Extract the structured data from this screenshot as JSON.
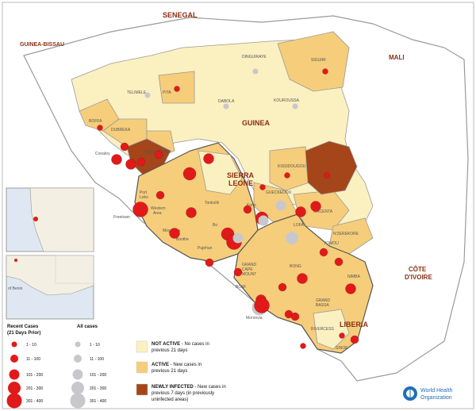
{
  "countries": {
    "senegal": "SENEGAL",
    "guinea_bissau": "GUINEA-BISSAU",
    "mali": "MALI",
    "guinea": "GUINEA",
    "sierra_leone": "SIERRA\nLEONE",
    "liberia": "LIBERIA",
    "cote_divoire": "CÔTE\nD'IVOIRE"
  },
  "districts": [
    {
      "id": "siguiri",
      "label": "SIGUIRI",
      "status": "active"
    },
    {
      "id": "dinguiraye",
      "label": "DINGUIRAYE",
      "status": "not"
    },
    {
      "id": "telimele",
      "label": "TELIMELE",
      "status": "not"
    },
    {
      "id": "pita",
      "label": "PITA",
      "status": "active"
    },
    {
      "id": "dabola",
      "label": "DABOLA",
      "status": "not"
    },
    {
      "id": "kouroussa",
      "label": "KOUROUSSA",
      "status": "not"
    },
    {
      "id": "boffa",
      "label": "BOFFA",
      "status": "active"
    },
    {
      "id": "dubreka",
      "label": "DUBREKA",
      "status": "active"
    },
    {
      "id": "forecariah",
      "label": "FORECARIAH",
      "status": "new"
    },
    {
      "id": "kissidougou",
      "label": "KISSIDOUGOU",
      "status": "active"
    },
    {
      "id": "gueckedou",
      "label": "GUECKEDOU",
      "status": "active"
    },
    {
      "id": "kerouane",
      "label": "",
      "status": "new"
    },
    {
      "id": "macenta",
      "label": "MACENTA",
      "status": "active"
    },
    {
      "id": "lofa",
      "label": "LOFA",
      "status": "active"
    },
    {
      "id": "nzerekore",
      "label": "N'ZEREKORE",
      "status": "active"
    },
    {
      "id": "yomou",
      "label": "YOMOU",
      "status": "active"
    },
    {
      "id": "nimba",
      "label": "NIMBA",
      "status": "active"
    },
    {
      "id": "bong",
      "label": "BONG",
      "status": "active"
    },
    {
      "id": "grand_cape_mount",
      "label": "GRAND\nCAPE\nMOUNT",
      "status": "active"
    },
    {
      "id": "bomi",
      "label": "BOMI",
      "status": "active"
    },
    {
      "id": "grand_bassa",
      "label": "GRAND\nBASSA",
      "status": "active"
    },
    {
      "id": "rivercess",
      "label": "RIVERCESS",
      "status": "not"
    },
    {
      "id": "sinoe",
      "label": "SINOE",
      "status": "active"
    },
    {
      "id": "port_loko",
      "label": "Port\nLoko",
      "status": "active"
    },
    {
      "id": "kambia",
      "label": "Kambia",
      "status": "active"
    },
    {
      "id": "tonkolili",
      "label": "Tonkolili",
      "status": "active"
    },
    {
      "id": "western_area",
      "label": "Western\nArea",
      "status": "active"
    },
    {
      "id": "moyamba",
      "label": "Moyamba",
      "status": "active"
    },
    {
      "id": "bo",
      "label": "Bo",
      "status": "active"
    },
    {
      "id": "kenema",
      "label": "Kenema",
      "status": "active"
    },
    {
      "id": "kono",
      "label": "Kono",
      "status": "active"
    },
    {
      "id": "pujehun",
      "label": "Pujehun",
      "status": "active"
    },
    {
      "id": "bonthe",
      "label": "Bonthe",
      "status": "active"
    }
  ],
  "cities": {
    "conakry": "Conakry",
    "freetown": "Freetown",
    "monrovia": "Monrovia"
  },
  "inset_labels": {
    "inset2_text": "of Benin"
  },
  "legend": {
    "recent_title": "Recent Cases\n(21 Days Prior)",
    "recent_classes": [
      "1 - 10",
      "11 - 100",
      "101 - 200",
      "201 - 300",
      "301 - 400"
    ],
    "all_title": "All cases",
    "all_classes": [
      "1 - 10",
      "11 - 100",
      "101 - 200",
      "201 - 300",
      "301 - 400"
    ],
    "status": [
      {
        "key": "not",
        "text": "NOT ACTIVE - No cases in\nprevious 21 days",
        "bold": "NOT ACTIVE"
      },
      {
        "key": "active",
        "text": "ACTIVE - New cases in\nprevious 21 days",
        "bold": "ACTIVE"
      },
      {
        "key": "new",
        "text": "NEWLY INFECTED - New cases in\nprevious  7 days (in previously\nuninfected areas)",
        "bold": "NEWLY INFECTED"
      }
    ]
  },
  "colors": {
    "not_active": "#fbf0c0",
    "active": "#f6cd7a",
    "newly_infected": "#a4451a",
    "recent_dot": "#e01a1a",
    "all_dot": "#c8c8cc",
    "label_brown": "#8b2e12",
    "border": "#9a9a9a"
  },
  "logo": {
    "line1": "World Health",
    "line2": "Organization"
  },
  "circles": [
    {
      "name": "siguiri",
      "recent": 1
    },
    {
      "name": "dinguiraye",
      "all": 1
    },
    {
      "name": "pita",
      "recent": 1
    },
    {
      "name": "telimele",
      "all": 1
    },
    {
      "name": "dabola",
      "all": 1
    },
    {
      "name": "kouroussa",
      "all": 1
    },
    {
      "name": "boffa",
      "recent": 1
    },
    {
      "name": "dubreka",
      "recent": 2
    },
    {
      "name": "conakry_a",
      "recent": 3
    },
    {
      "name": "conakry_b",
      "recent": 3
    },
    {
      "name": "forecariah",
      "recent": 2
    },
    {
      "name": "coyah",
      "recent": 2
    },
    {
      "name": "kissidougou",
      "recent": 1
    },
    {
      "name": "kerouane",
      "recent": 1
    },
    {
      "name": "kambia",
      "recent": 2
    },
    {
      "name": "port_loko",
      "recent": 4
    },
    {
      "name": "bombali",
      "recent": 3
    },
    {
      "name": "koinadugu",
      "recent": 1
    },
    {
      "name": "western",
      "recent": 5
    },
    {
      "name": "tonkolili",
      "recent": 3
    },
    {
      "name": "kono",
      "recent": 2
    },
    {
      "name": "kailahun",
      "all": 3
    },
    {
      "name": "gueckedou",
      "recent": 4
    },
    {
      "name": "gueckedou_all",
      "all": 3
    },
    {
      "name": "macenta",
      "recent": 3
    },
    {
      "name": "lofa",
      "recent": 3
    },
    {
      "name": "lofa_all",
      "all": 4
    },
    {
      "name": "moyamba",
      "recent": 3
    },
    {
      "name": "bo",
      "recent": 4
    },
    {
      "name": "kenema",
      "recent": 5
    },
    {
      "name": "kenema_all",
      "all": 3
    },
    {
      "name": "bonthe",
      "recent": 2
    },
    {
      "name": "pujehun",
      "recent": 2
    },
    {
      "name": "nzerekore",
      "recent": 2
    },
    {
      "name": "yomou",
      "recent": 2
    },
    {
      "name": "nimba",
      "recent": 3
    },
    {
      "name": "bong",
      "recent": 3
    },
    {
      "name": "gcm",
      "recent": 2
    },
    {
      "name": "bomi",
      "recent": 3
    },
    {
      "name": "margibi",
      "recent": 2
    },
    {
      "name": "montserrado",
      "all": 5
    },
    {
      "name": "montserrado_r",
      "recent": 5
    },
    {
      "name": "grand_bassa",
      "recent": 2
    },
    {
      "name": "river_gee",
      "recent": 1
    },
    {
      "name": "sinoe",
      "recent": 1
    },
    {
      "name": "grand_gedeh",
      "recent": 2
    }
  ]
}
